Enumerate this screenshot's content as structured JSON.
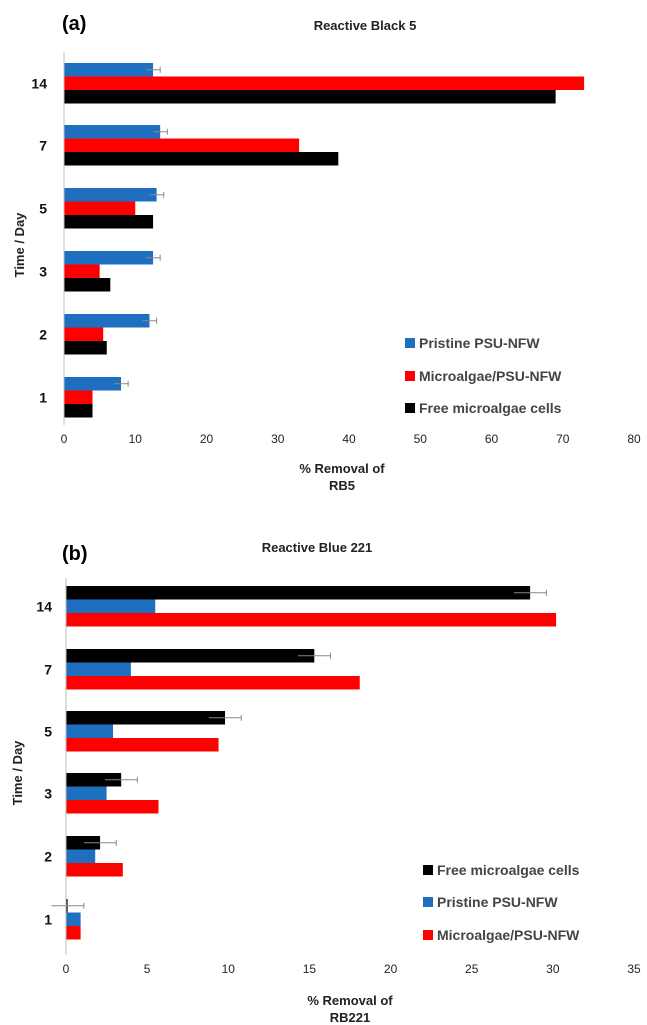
{
  "chart_data": [
    {
      "type": "bar",
      "orientation": "horizontal",
      "panel_label": "(a)",
      "title": "Reactive Black 5",
      "xlabel_line1": "% Removal of",
      "xlabel_line2": "RB5",
      "ylabel": "Time / Day",
      "categories": [
        "14",
        "7",
        "5",
        "3",
        "2",
        "1"
      ],
      "xlim": [
        0,
        80
      ],
      "xticks": [
        "0",
        "10",
        "20",
        "30",
        "40",
        "50",
        "60",
        "70",
        "80"
      ],
      "legend_position": "bottom-right",
      "series": [
        {
          "name": "Pristine PSU-NFW",
          "color": "#1f6fc0",
          "values": [
            12.5,
            13.5,
            13,
            12.5,
            12,
            8
          ],
          "errors": [
            1,
            1,
            1,
            1,
            1,
            1
          ]
        },
        {
          "name": "Microalgae/PSU-NFW",
          "color": "#ff0000",
          "values": [
            73,
            33,
            10,
            5,
            5.5,
            4
          ],
          "errors": [
            0,
            0,
            0,
            0,
            0,
            0
          ]
        },
        {
          "name": "Free microalgae cells",
          "color": "#000000",
          "values": [
            69,
            38.5,
            12.5,
            6.5,
            6,
            4
          ],
          "errors": [
            0,
            0,
            0,
            0,
            0,
            0
          ]
        }
      ]
    },
    {
      "type": "bar",
      "orientation": "horizontal",
      "panel_label": "(b)",
      "title": "Reactive Blue 221",
      "xlabel_line1": "% Removal of",
      "xlabel_line2": "RB221",
      "ylabel": "Time / Day",
      "categories": [
        "14",
        "7",
        "5",
        "3",
        "2",
        "1"
      ],
      "xlim": [
        0,
        35
      ],
      "xticks": [
        "0",
        "5",
        "10",
        "15",
        "20",
        "25",
        "30",
        "35"
      ],
      "legend_position": "bottom-right",
      "series": [
        {
          "name": "Free microalgae cells",
          "color": "#000000",
          "values": [
            28.6,
            15.3,
            9.8,
            3.4,
            2.1,
            0.1
          ],
          "errors": [
            1,
            1,
            1,
            1,
            1,
            1
          ]
        },
        {
          "name": "Pristine PSU-NFW",
          "color": "#1f6fc0",
          "values": [
            5.5,
            4.0,
            2.9,
            2.5,
            1.8,
            0.9
          ],
          "errors": [
            0,
            0,
            0,
            0,
            0,
            0
          ]
        },
        {
          "name": "Microalgae/PSU-NFW",
          "color": "#ff0000",
          "values": [
            30.2,
            18.1,
            9.4,
            5.7,
            3.5,
            0.9
          ],
          "errors": [
            0,
            0,
            0,
            0,
            0,
            0
          ]
        }
      ]
    }
  ]
}
